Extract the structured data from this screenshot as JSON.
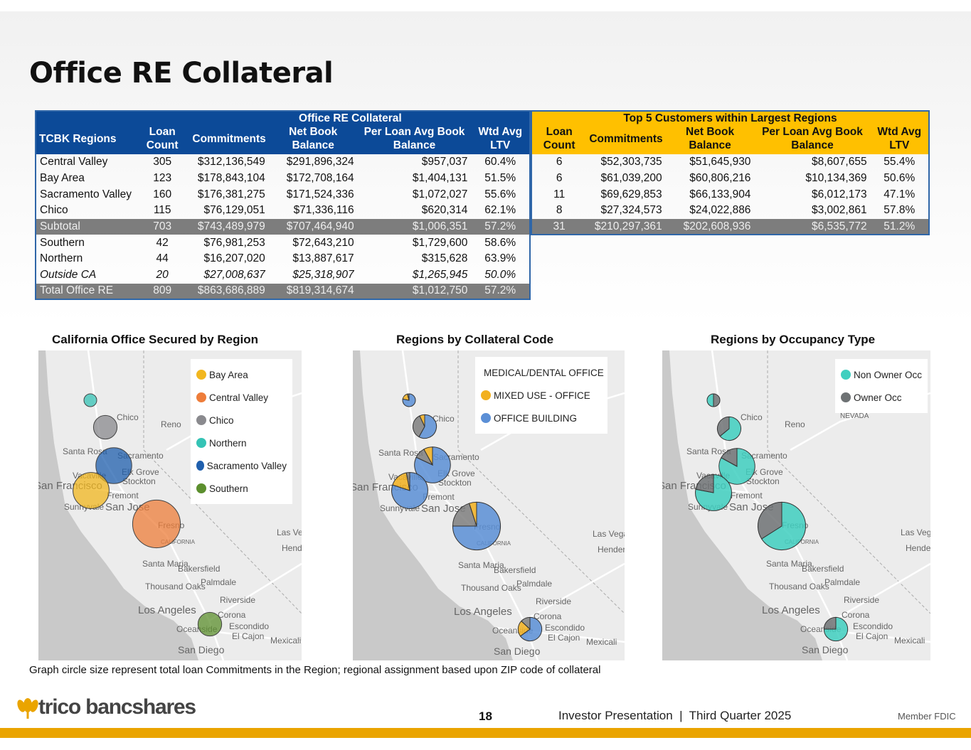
{
  "title": "Office RE Collateral",
  "table_left": {
    "group_header": "Office RE Collateral",
    "headers": [
      "TCBK Regions",
      "Loan Count",
      "Commitments",
      "Net Book Balance",
      "Per Loan Avg Book Balance",
      "Wtd Avg LTV"
    ],
    "rows": [
      [
        "Central Valley",
        "305",
        "$312,136,549",
        "$291,896,324",
        "$957,037",
        "60.4%"
      ],
      [
        "Bay Area",
        "123",
        "$178,843,104",
        "$172,708,164",
        "$1,404,131",
        "51.5%"
      ],
      [
        "Sacramento Valley",
        "160",
        "$176,381,275",
        "$171,524,336",
        "$1,072,027",
        "55.6%"
      ],
      [
        "Chico",
        "115",
        "$76,129,051",
        "$71,336,116",
        "$620,314",
        "62.1%"
      ],
      [
        "Subtotal",
        "703",
        "$743,489,979",
        "$707,464,940",
        "$1,006,351",
        "57.2%"
      ],
      [
        "Southern",
        "42",
        "$76,981,253",
        "$72,643,210",
        "$1,729,600",
        "58.6%"
      ],
      [
        "Northern",
        "44",
        "$16,207,020",
        "$13,887,617",
        "$315,628",
        "63.9%"
      ],
      [
        "Outside CA",
        "20",
        "$27,008,637",
        "$25,318,907",
        "$1,265,945",
        "50.0%"
      ],
      [
        "Total Office RE",
        "809",
        "$863,686,889",
        "$819,314,674",
        "$1,012,750",
        "57.2%"
      ]
    ]
  },
  "table_right": {
    "group_header": "Top 5 Customers within Largest Regions",
    "headers": [
      "Loan Count",
      "Commitments",
      "Net Book Balance",
      "Per Loan Avg Book Balance",
      "Wtd Avg LTV"
    ],
    "rows": [
      [
        "6",
        "$52,303,735",
        "$51,645,930",
        "$8,607,655",
        "55.4%"
      ],
      [
        "6",
        "$61,039,200",
        "$60,806,216",
        "$10,134,369",
        "50.6%"
      ],
      [
        "11",
        "$69,629,853",
        "$66,133,904",
        "$6,012,173",
        "47.1%"
      ],
      [
        "8",
        "$27,324,573",
        "$24,022,886",
        "$3,002,861",
        "57.8%"
      ],
      [
        "31",
        "$210,297,361",
        "$202,608,936",
        "$6,535,772",
        "51.2%"
      ]
    ]
  },
  "cities": [
    "Chico",
    "Reno",
    "Santa Rosa",
    "Sacramento",
    "Elk Grove",
    "Stockton",
    "Vacaville",
    "San Francisco",
    "Fremont",
    "Sunnyvale",
    "San Jose",
    "Fresno",
    "CALIFORNIA",
    "Las Vegas",
    "Henderson",
    "Santa Maria",
    "Bakersfield",
    "Thousand Oaks",
    "Palmdale",
    "Riverside",
    "Los Angeles",
    "Corona",
    "Escondido",
    "Oceanside",
    "El Cajon",
    "Mexicali",
    "San Diego",
    "NEVADA"
  ],
  "colors": {
    "navy": "#0c4a98",
    "gold": "#ffc000",
    "footer_bar": "#eaa400"
  },
  "maps": [
    {
      "title": "California Office Secured by Region",
      "legend": [
        {
          "label": "Bay Area",
          "color": "#f2b71f"
        },
        {
          "label": "Central Valley",
          "color": "#ee7d3a"
        },
        {
          "label": "Chico",
          "color": "#8a8a8e"
        },
        {
          "label": "Northern",
          "color": "#35c3b5"
        },
        {
          "label": "Sacramento Valley",
          "color": "#1f5fad"
        },
        {
          "label": "Southern",
          "color": "#5c8f2e"
        }
      ],
      "bubbles": [
        {
          "region": "Northern",
          "commitments": 16207020,
          "slices": [
            {
              "key": 3,
              "value": 1
            }
          ]
        },
        {
          "region": "Chico",
          "commitments": 76129051,
          "slices": [
            {
              "key": 2,
              "value": 1
            }
          ]
        },
        {
          "region": "Sacramento Valley",
          "commitments": 176381275,
          "slices": [
            {
              "key": 4,
              "value": 1
            }
          ]
        },
        {
          "region": "Bay Area",
          "commitments": 178843104,
          "slices": [
            {
              "key": 0,
              "value": 1
            }
          ]
        },
        {
          "region": "Central Valley",
          "commitments": 312136549,
          "slices": [
            {
              "key": 1,
              "value": 1
            }
          ]
        },
        {
          "region": "Southern",
          "commitments": 76981253,
          "slices": [
            {
              "key": 5,
              "value": 1
            }
          ]
        }
      ]
    },
    {
      "title": "Regions by Collateral Code",
      "legend": [
        {
          "label": "MEDICAL/DENTAL OFFICE",
          "color": "#7f7f7f"
        },
        {
          "label": "MIXED USE - OFFICE",
          "color": "#f2b01e"
        },
        {
          "label": "OFFICE BUILDING",
          "color": "#5b8fd6"
        }
      ],
      "bubbles": [
        {
          "region": "Northern",
          "commitments": 16207020,
          "slices": [
            {
              "key": 2,
              "value": 0.78
            },
            {
              "key": 1,
              "value": 0.18
            },
            {
              "key": 0,
              "value": 0.04
            }
          ]
        },
        {
          "region": "Chico",
          "commitments": 76129051,
          "slices": [
            {
              "key": 2,
              "value": 0.58
            },
            {
              "key": 0,
              "value": 0.35
            },
            {
              "key": 1,
              "value": 0.07
            }
          ]
        },
        {
          "region": "Sacramento Valley",
          "commitments": 176381275,
          "slices": [
            {
              "key": 2,
              "value": 0.82
            },
            {
              "key": 0,
              "value": 0.1
            },
            {
              "key": 1,
              "value": 0.08
            }
          ]
        },
        {
          "region": "Bay Area",
          "commitments": 178843104,
          "slices": [
            {
              "key": 2,
              "value": 0.8
            },
            {
              "key": 1,
              "value": 0.17
            },
            {
              "key": 0,
              "value": 0.03
            }
          ]
        },
        {
          "region": "Central Valley",
          "commitments": 312136549,
          "slices": [
            {
              "key": 2,
              "value": 0.75
            },
            {
              "key": 0,
              "value": 0.2
            },
            {
              "key": 1,
              "value": 0.05
            }
          ]
        },
        {
          "region": "Southern",
          "commitments": 76981253,
          "slices": [
            {
              "key": 2,
              "value": 0.65
            },
            {
              "key": 1,
              "value": 0.22
            },
            {
              "key": 0,
              "value": 0.13
            }
          ]
        }
      ]
    },
    {
      "title": "Regions by Occupancy Type",
      "legend": [
        {
          "label": "Non Owner Occ",
          "color": "#3fcfbf"
        },
        {
          "label": "Owner Occ",
          "color": "#6e7274"
        }
      ],
      "bubbles": [
        {
          "region": "Northern",
          "commitments": 16207020,
          "slices": [
            {
              "key": 1,
              "value": 0.5
            },
            {
              "key": 0,
              "value": 0.5
            }
          ]
        },
        {
          "region": "Chico",
          "commitments": 76129051,
          "slices": [
            {
              "key": 0,
              "value": 0.64
            },
            {
              "key": 1,
              "value": 0.36
            }
          ]
        },
        {
          "region": "Sacramento Valley",
          "commitments": 176381275,
          "slices": [
            {
              "key": 0,
              "value": 0.83
            },
            {
              "key": 1,
              "value": 0.17
            }
          ]
        },
        {
          "region": "Bay Area",
          "commitments": 178843104,
          "slices": [
            {
              "key": 0,
              "value": 0.78
            },
            {
              "key": 1,
              "value": 0.22
            }
          ]
        },
        {
          "region": "Central Valley",
          "commitments": 312136549,
          "slices": [
            {
              "key": 0,
              "value": 0.66
            },
            {
              "key": 1,
              "value": 0.34
            }
          ]
        },
        {
          "region": "Southern",
          "commitments": 76981253,
          "slices": [
            {
              "key": 0,
              "value": 0.75
            },
            {
              "key": 1,
              "value": 0.25
            }
          ]
        }
      ]
    }
  ],
  "footnote": "Graph circle size represent total loan Commitments in the Region; regional assignment based upon ZIP code of collateral",
  "footer": {
    "logo_text": "trico bancshares",
    "page_number": "18",
    "presentation": "Investor Presentation  |  Third Quarter 2025",
    "fdic": "Member FDIC"
  }
}
